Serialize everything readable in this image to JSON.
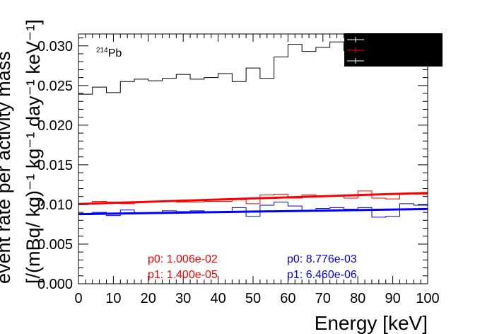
{
  "chart_data": {
    "type": "line",
    "title": "",
    "isotope_label": {
      "sup": "214",
      "base": "Pb"
    },
    "xlabel": "Energy [keV]",
    "ylabel_line1": "event rate per activity mass",
    "ylabel_line2": "[/(mBq/ kg)⁻¹ kg⁻¹ day⁻¹ keV⁻¹]",
    "xlim": [
      0,
      100
    ],
    "ylim": [
      0,
      0.0315
    ],
    "x_ticks": [
      "0",
      "10",
      "20",
      "30",
      "40",
      "50",
      "60",
      "70",
      "80",
      "90",
      "100"
    ],
    "y_ticks": [
      "0.000",
      "0.005",
      "0.010",
      "0.015",
      "0.020",
      "0.025",
      "0.030"
    ],
    "bin_edges": [
      0,
      4,
      8,
      12,
      16,
      20,
      24,
      28,
      32,
      36,
      40,
      44,
      48,
      52,
      56,
      60,
      64,
      68,
      72,
      76,
      80,
      84,
      88,
      92,
      96,
      100
    ],
    "series": [
      {
        "color": "#000000",
        "style": "histogram",
        "values": [
          0.0239,
          0.0248,
          0.0241,
          0.0255,
          0.0258,
          0.0256,
          0.0259,
          0.0264,
          0.0258,
          0.026,
          0.0265,
          0.0255,
          0.0272,
          0.0259,
          0.0286,
          0.0302,
          0.0293,
          0.0298,
          0.0305,
          0.0294,
          0.0297,
          0.0287,
          0.0296,
          0.0291,
          0.0284
        ]
      },
      {
        "color": "#ff0000",
        "style": "histogram",
        "values": [
          0.0101,
          0.0104,
          0.0103,
          0.0101,
          0.0103,
          0.0104,
          0.0104,
          0.0103,
          0.0103,
          0.0104,
          0.0104,
          0.0106,
          0.0101,
          0.0112,
          0.0113,
          0.0108,
          0.0112,
          0.011,
          0.0111,
          0.0108,
          0.0117,
          0.0108,
          0.0107,
          0.0114,
          0.0113
        ]
      },
      {
        "color": "#0000ff",
        "style": "histogram",
        "values": [
          0.0087,
          0.009,
          0.0086,
          0.0093,
          0.0089,
          0.0089,
          0.0092,
          0.0091,
          0.0092,
          0.0091,
          0.0091,
          0.0096,
          0.0085,
          0.0099,
          0.0103,
          0.0098,
          0.0092,
          0.0095,
          0.0096,
          0.0094,
          0.0096,
          0.0084,
          0.0085,
          0.0101,
          0.0099
        ]
      }
    ],
    "fits": [
      {
        "color": "#ff0000",
        "p0": 0.01006,
        "p1": 1.4e-05,
        "p0_label": "p0: 1.006e-02",
        "p1_label": "p1: 1.400e-05"
      },
      {
        "color": "#0000ff",
        "p0": 0.008776,
        "p1": 6.46e-06,
        "p0_label": "p0: 8.776e-03",
        "p1_label": "p1: 6.460e-06"
      }
    ],
    "legend": {
      "position": "top-right",
      "fill": "#000000",
      "colors": [
        "#000000",
        "#ff0000",
        "#000000"
      ]
    },
    "grid": false
  }
}
